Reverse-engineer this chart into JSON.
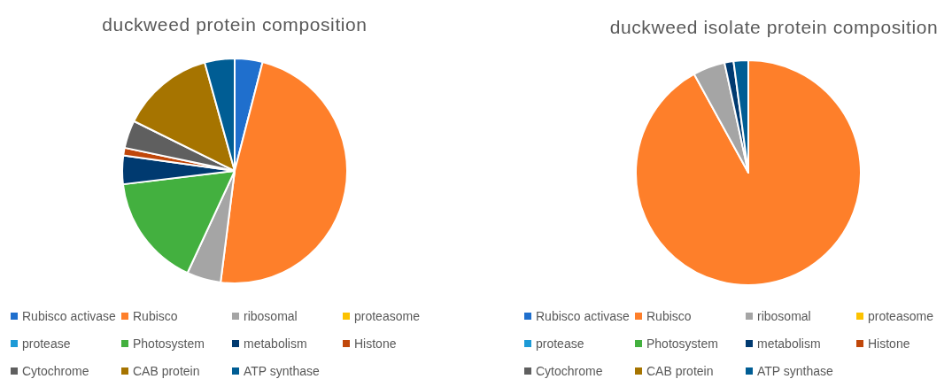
{
  "chart_data": [
    {
      "type": "pie",
      "title": "duckweed protein composition",
      "categories": [
        "Rubisco activase",
        "Rubisco",
        "ribosomal",
        "proteasome",
        "protease",
        "Photosystem",
        "metabolism",
        "Histone",
        "Cytochrome",
        "CAB protein",
        "ATP synthase"
      ],
      "values": [
        4.0,
        48.0,
        4.9,
        0,
        0,
        16.2,
        4.1,
        1.1,
        4.0,
        13.4,
        4.3
      ],
      "colors": [
        "#1f6fcd",
        "#fe7f2a",
        "#a5a5a5",
        "#fcc200",
        "#1d9ad6",
        "#43b03f",
        "#003a70",
        "#c0470a",
        "#5f5f5f",
        "#a67400",
        "#005d94"
      ],
      "legend": "bottom"
    },
    {
      "type": "pie",
      "title": "duckweed isolate protein composition",
      "categories": [
        "Rubisco activase",
        "Rubisco",
        "ribosomal",
        "proteasome",
        "protease",
        "Photosystem",
        "metabolism",
        "Histone",
        "Cytochrome",
        "CAB protein",
        "ATP synthase"
      ],
      "values": [
        0,
        92.0,
        4.6,
        0,
        0,
        0,
        1.3,
        0,
        0,
        0,
        2.1
      ],
      "colors": [
        "#1f6fcd",
        "#fe7f2a",
        "#a5a5a5",
        "#fcc200",
        "#1d9ad6",
        "#43b03f",
        "#003a70",
        "#c0470a",
        "#5f5f5f",
        "#a67400",
        "#005d94"
      ],
      "legend": "bottom"
    }
  ]
}
